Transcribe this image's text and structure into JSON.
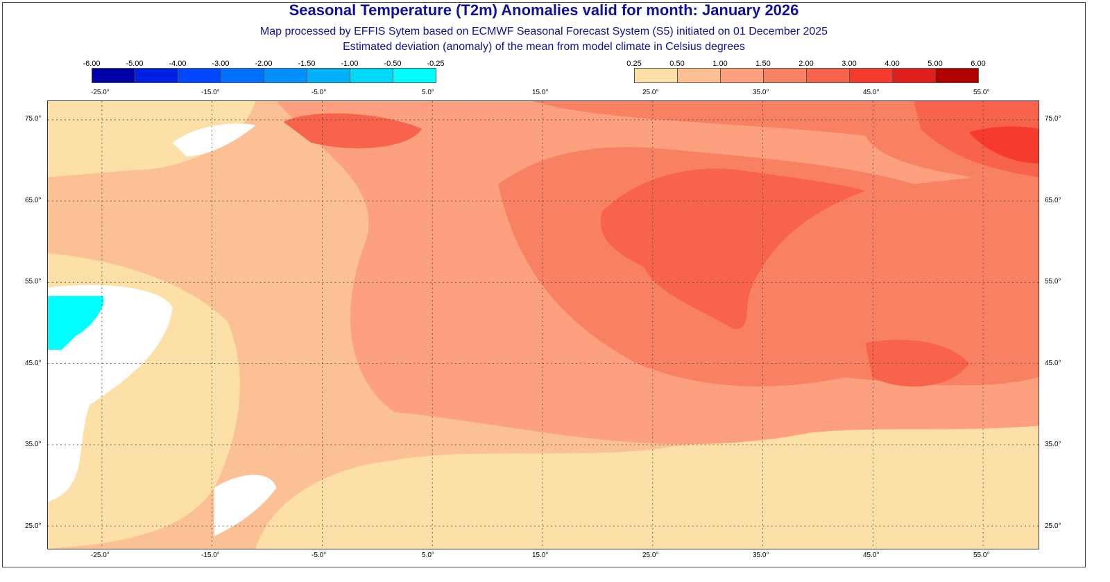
{
  "title": "Seasonal Temperature (T2m) Anomalies valid for month: January 2026",
  "subtitle1": "Map processed by EFFIS Sytem based on ECMWF Seasonal Forecast System (S5) initiated on 01 December 2025",
  "subtitle2": "Estimated deviation (anomaly) of the mean from model climate in Celsius degrees",
  "legend_negative": {
    "labels": [
      "-6.00",
      "-5.00",
      "-4.00",
      "-3.00",
      "-2.00",
      "-1.50",
      "-1.00",
      "-0.50",
      "-0.25"
    ],
    "colors": [
      "#0000a8",
      "#0020e0",
      "#0048ff",
      "#0070ff",
      "#0090ff",
      "#00b0f8",
      "#00d8f8",
      "#00ffff"
    ]
  },
  "legend_positive": {
    "labels": [
      "0.25",
      "0.50",
      "1.00",
      "1.50",
      "2.00",
      "3.00",
      "4.00",
      "5.00",
      "6.00"
    ],
    "colors": [
      "#fde0a8",
      "#fdc095",
      "#fca07f",
      "#f98163",
      "#f7634b",
      "#f63b2e",
      "#de1f1c",
      "#b00000"
    ]
  },
  "lon_labels": [
    "-25.0°",
    "-15.0°",
    "-5.0°",
    "5.0°",
    "15.0°",
    "25.0°",
    "35.0°",
    "45.0°",
    "55.0°"
  ],
  "lat_labels": [
    "75.0°",
    "65.0°",
    "55.0°",
    "45.0°",
    "35.0°",
    "25.0°"
  ]
}
